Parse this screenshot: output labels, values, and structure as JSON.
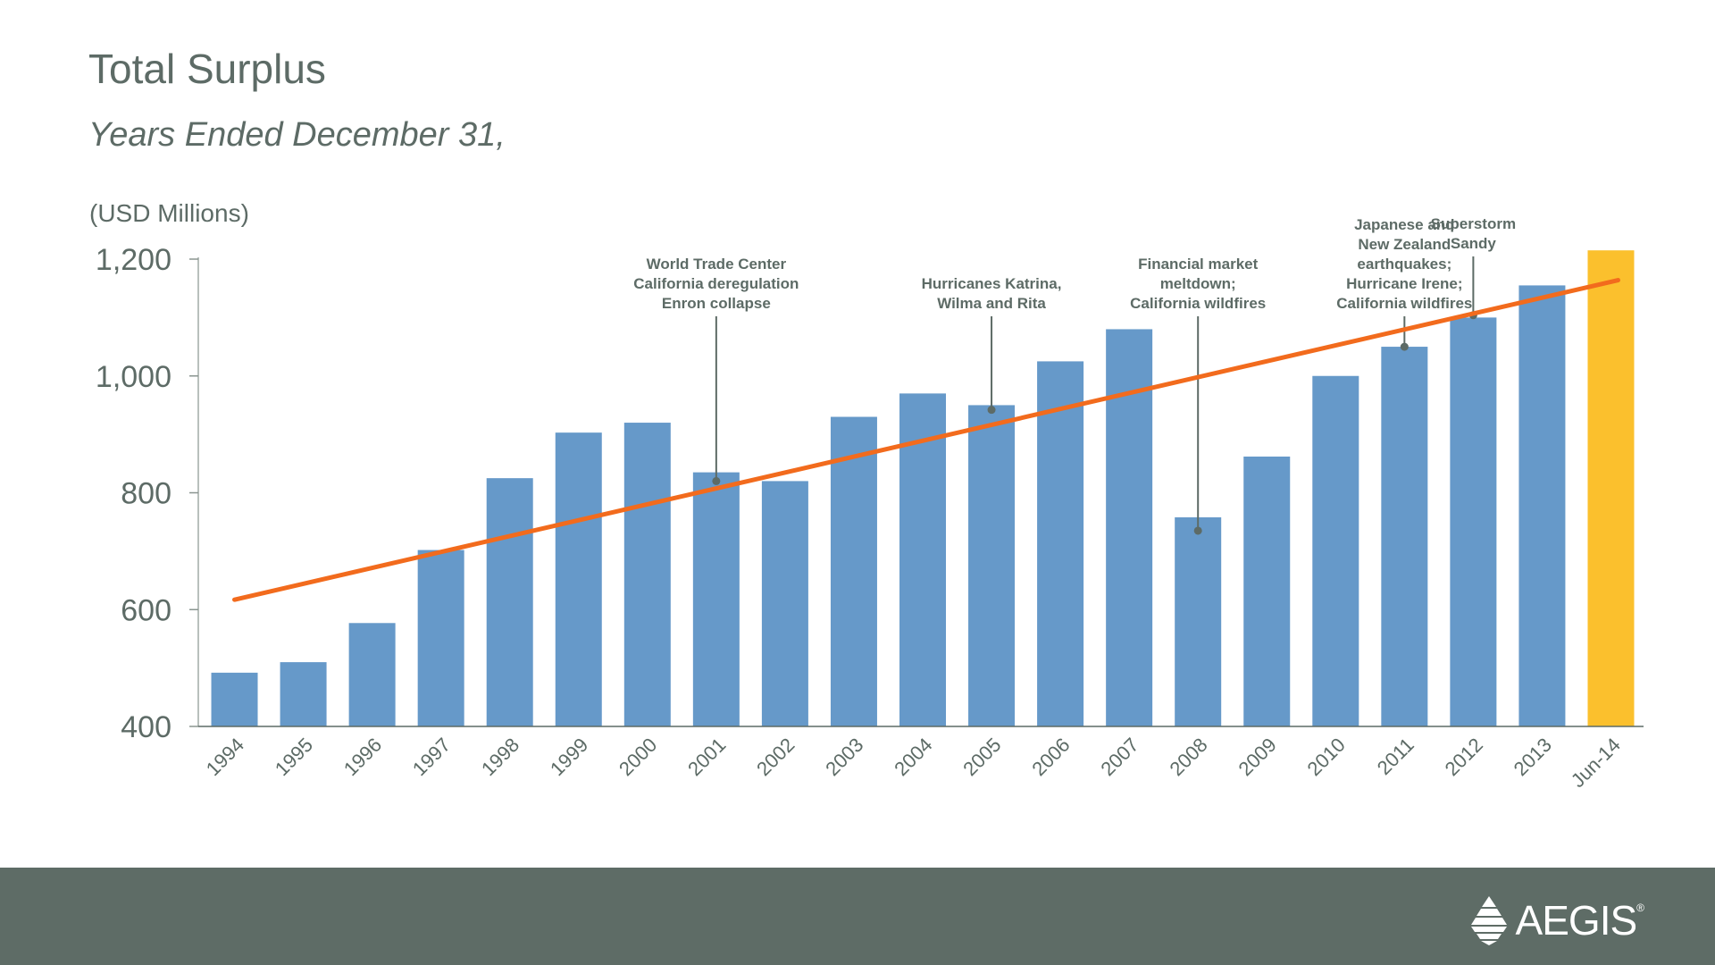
{
  "page": {
    "title": "Total Surplus",
    "subtitle": "Years Ended December 31,"
  },
  "brand": {
    "name": "AEGIS",
    "registered_mark": "®",
    "icon": "aegis-pyramid-icon"
  },
  "colors": {
    "bar": "#6699c9",
    "bar_highlight": "#fbc02d",
    "trend": "#f26b1d",
    "text": "#5d6b66",
    "annotation_line": "#5d6b66",
    "footer": "#5e6c66"
  },
  "chart_data": {
    "type": "bar",
    "title": "Total Surplus",
    "subtitle": "Years Ended December 31,",
    "ylabel": "(USD Millions)",
    "xlabel": "",
    "ylim": [
      400,
      1200
    ],
    "yticks": [
      400,
      600,
      800,
      1000,
      1200
    ],
    "ytick_labels": [
      "400",
      "600",
      "800",
      "1,000",
      "1,200"
    ],
    "grid": false,
    "categories": [
      "1994",
      "1995",
      "1996",
      "1997",
      "1998",
      "1999",
      "2000",
      "2001",
      "2002",
      "2003",
      "2004",
      "2005",
      "2006",
      "2007",
      "2008",
      "2009",
      "2010",
      "2011",
      "2012",
      "2013",
      "Jun-14"
    ],
    "values": [
      492,
      510,
      577,
      702,
      825,
      903,
      920,
      835,
      820,
      930,
      970,
      950,
      1025,
      1080,
      758,
      862,
      1000,
      1050,
      1100,
      1155,
      1215
    ],
    "highlight_index": 20,
    "trendline": {
      "start": 617,
      "end": 1164
    },
    "annotations": [
      {
        "category_index": 7,
        "value": 820,
        "lines": [
          "World Trade Center",
          "California deregulation",
          "Enron collapse"
        ]
      },
      {
        "category_index": 11,
        "value": 942,
        "lines": [
          "Hurricanes Katrina,",
          "Wilma and Rita"
        ]
      },
      {
        "category_index": 14,
        "value": 735,
        "lines": [
          "Financial market",
          "meltdown;",
          "California wildfires"
        ]
      },
      {
        "category_index": 17,
        "value": 1050,
        "lines": [
          "Japanese and",
          "New Zealand",
          "earthquakes;",
          "Hurricane Irene;",
          "California wildfires"
        ]
      },
      {
        "category_index": 18,
        "value": 1104,
        "lines": [
          "Superstorm",
          "Sandy"
        ]
      }
    ]
  }
}
